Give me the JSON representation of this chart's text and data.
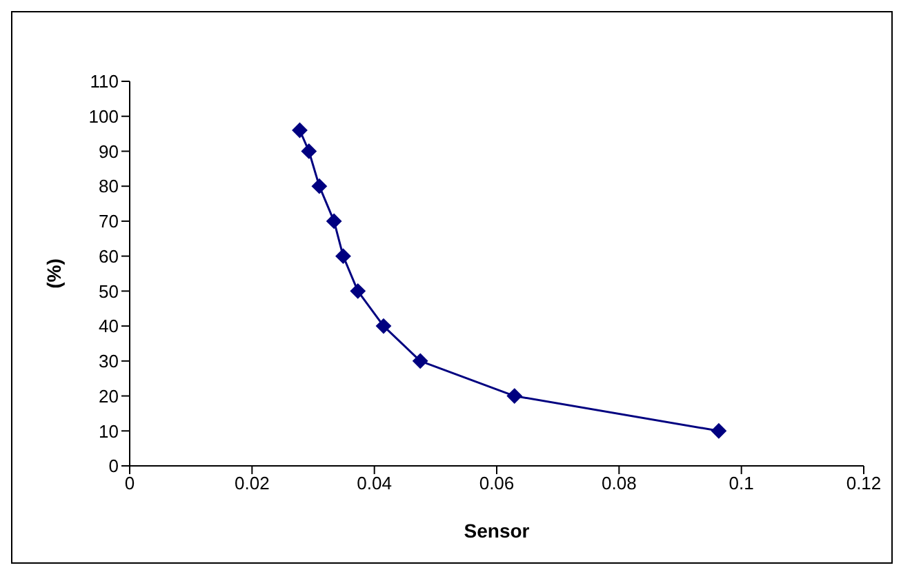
{
  "chart_data": {
    "type": "line",
    "xlabel": "Sensor",
    "ylabel": "(%)",
    "x": [
      0.0278,
      0.0293,
      0.031,
      0.0334,
      0.0349,
      0.0373,
      0.0415,
      0.0475,
      0.0629,
      0.0963
    ],
    "series": [
      {
        "color": "#000080",
        "values": [
          96,
          90,
          80,
          70,
          60,
          50,
          40,
          30,
          20,
          10
        ]
      }
    ],
    "xlim": [
      0,
      0.12
    ],
    "xticks": [
      0,
      0.02,
      0.04,
      0.06,
      0.08,
      0.1,
      0.12
    ],
    "ylim": [
      0,
      110
    ],
    "yticks": [
      0,
      10,
      20,
      30,
      40,
      50,
      60,
      70,
      80,
      90,
      100,
      110
    ],
    "marker": "diamond",
    "grid": false,
    "legend": false
  }
}
